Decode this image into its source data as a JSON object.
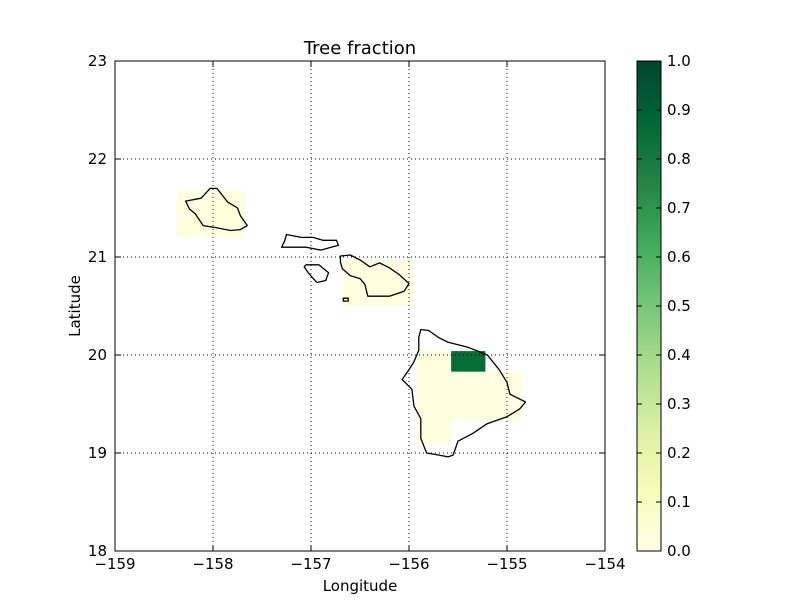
{
  "chart_data": {
    "type": "heatmap",
    "title": "Tree fraction",
    "xlabel": "Longitude",
    "ylabel": "Latitude",
    "xlim": [
      -159,
      -154
    ],
    "ylim": [
      18,
      23
    ],
    "xticks": [
      -159,
      -158,
      -157,
      -156,
      -155,
      -154
    ],
    "yticks": [
      18,
      19,
      20,
      21,
      22,
      23
    ],
    "xtick_labels": [
      "−159",
      "−158",
      "−157",
      "−156",
      "−155",
      "−154"
    ],
    "ytick_labels": [
      "18",
      "19",
      "20",
      "21",
      "22",
      "23"
    ],
    "grid": true,
    "colormap": "YlGn",
    "colormap_stops": [
      "#ffffe5",
      "#f7fcb9",
      "#d9f0a3",
      "#addd8e",
      "#78c679",
      "#41ab5d",
      "#238443",
      "#006837",
      "#004529"
    ],
    "colorbar": {
      "min": 0.0,
      "max": 1.0,
      "ticks": [
        0.0,
        0.1,
        0.2,
        0.3,
        0.4,
        0.5,
        0.6,
        0.7,
        0.8,
        0.9,
        1.0
      ],
      "tick_labels": [
        "0.0",
        "0.1",
        "0.2",
        "0.3",
        "0.4",
        "0.5",
        "0.6",
        "0.7",
        "0.8",
        "0.9",
        "1.0"
      ]
    },
    "cells": [
      {
        "lon": [
          -158.37,
          -157.67
        ],
        "lat": [
          21.2,
          21.67
        ],
        "value": 0.02
      },
      {
        "lon": [
          -156.67,
          -155.95
        ],
        "lat": [
          20.5,
          20.97
        ],
        "value": 0.02
      },
      {
        "lon": [
          -155.92,
          -155.57
        ],
        "lat": [
          19.83,
          20.04
        ],
        "value": 0.02
      },
      {
        "lon": [
          -155.92,
          -154.85
        ],
        "lat": [
          19.33,
          19.83
        ],
        "value": 0.02
      },
      {
        "lon": [
          -155.92,
          -155.57
        ],
        "lat": [
          19.1,
          19.33
        ],
        "value": 0.02
      },
      {
        "lon": [
          -155.57,
          -155.22
        ],
        "lat": [
          19.83,
          20.04
        ],
        "value": 0.85
      }
    ],
    "coastlines": [
      {
        "name": "Oahu",
        "points": [
          [
            -158.28,
            21.57
          ],
          [
            -158.12,
            21.6
          ],
          [
            -158.03,
            21.7
          ],
          [
            -157.96,
            21.7
          ],
          [
            -157.85,
            21.56
          ],
          [
            -157.75,
            21.5
          ],
          [
            -157.72,
            21.42
          ],
          [
            -157.65,
            21.32
          ],
          [
            -157.72,
            21.28
          ],
          [
            -157.82,
            21.27
          ],
          [
            -157.97,
            21.3
          ],
          [
            -158.1,
            21.32
          ],
          [
            -158.18,
            21.44
          ],
          [
            -158.24,
            21.49
          ]
        ]
      },
      {
        "name": "Molokai",
        "points": [
          [
            -157.25,
            21.23
          ],
          [
            -157.1,
            21.2
          ],
          [
            -156.98,
            21.2
          ],
          [
            -156.88,
            21.17
          ],
          [
            -156.74,
            21.17
          ],
          [
            -156.72,
            21.12
          ],
          [
            -156.9,
            21.07
          ],
          [
            -157.05,
            21.1
          ],
          [
            -157.3,
            21.1
          ],
          [
            -157.27,
            21.16
          ]
        ]
      },
      {
        "name": "Lanai",
        "points": [
          [
            -157.05,
            20.92
          ],
          [
            -156.92,
            20.92
          ],
          [
            -156.82,
            20.84
          ],
          [
            -156.85,
            20.76
          ],
          [
            -156.94,
            20.74
          ],
          [
            -157.02,
            20.83
          ],
          [
            -157.07,
            20.9
          ]
        ]
      },
      {
        "name": "Maui",
        "points": [
          [
            -156.7,
            21.01
          ],
          [
            -156.6,
            21.02
          ],
          [
            -156.5,
            20.97
          ],
          [
            -156.4,
            20.9
          ],
          [
            -156.3,
            20.94
          ],
          [
            -156.2,
            20.89
          ],
          [
            -156.1,
            20.82
          ],
          [
            -156.0,
            20.73
          ],
          [
            -156.05,
            20.65
          ],
          [
            -156.2,
            20.6
          ],
          [
            -156.33,
            20.6
          ],
          [
            -156.42,
            20.6
          ],
          [
            -156.45,
            20.72
          ],
          [
            -156.5,
            20.78
          ],
          [
            -156.6,
            20.81
          ],
          [
            -156.68,
            20.88
          ],
          [
            -156.7,
            20.95
          ]
        ]
      },
      {
        "name": "Hawaii",
        "points": [
          [
            -155.88,
            20.26
          ],
          [
            -155.8,
            20.25
          ],
          [
            -155.7,
            20.18
          ],
          [
            -155.6,
            20.13
          ],
          [
            -155.4,
            20.08
          ],
          [
            -155.2,
            20.0
          ],
          [
            -155.08,
            19.85
          ],
          [
            -155.0,
            19.72
          ],
          [
            -154.97,
            19.6
          ],
          [
            -154.81,
            19.52
          ],
          [
            -154.87,
            19.45
          ],
          [
            -155.0,
            19.37
          ],
          [
            -155.2,
            19.3
          ],
          [
            -155.35,
            19.2
          ],
          [
            -155.5,
            19.12
          ],
          [
            -155.55,
            18.98
          ],
          [
            -155.6,
            18.96
          ],
          [
            -155.7,
            18.98
          ],
          [
            -155.82,
            19.0
          ],
          [
            -155.88,
            19.15
          ],
          [
            -155.88,
            19.35
          ],
          [
            -155.95,
            19.48
          ],
          [
            -155.97,
            19.65
          ],
          [
            -156.07,
            19.75
          ],
          [
            -156.0,
            19.85
          ],
          [
            -155.95,
            19.93
          ],
          [
            -155.9,
            20.05
          ],
          [
            -155.9,
            20.18
          ]
        ]
      },
      {
        "name": "Kahoolawe",
        "points": [
          [
            -156.67,
            20.58
          ],
          [
            -156.62,
            20.58
          ],
          [
            -156.62,
            20.55
          ],
          [
            -156.67,
            20.55
          ]
        ]
      }
    ]
  }
}
